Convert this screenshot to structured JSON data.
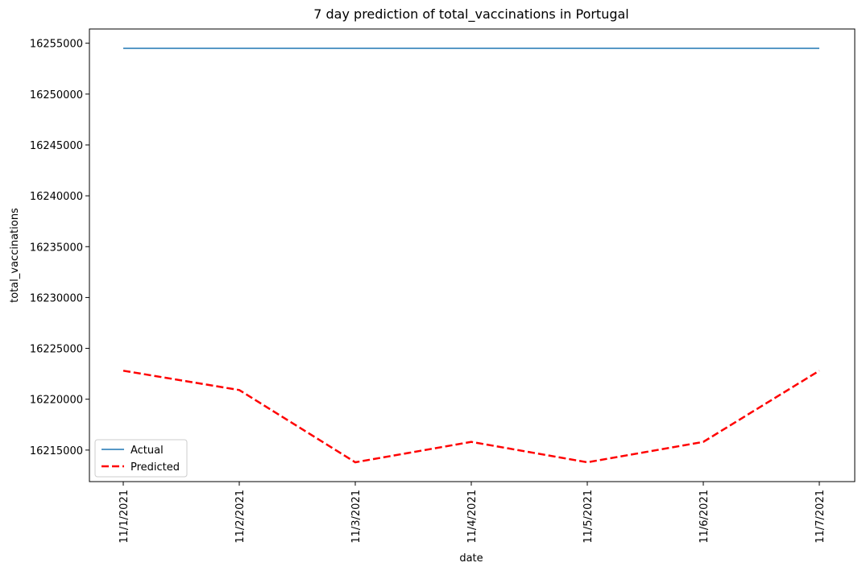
{
  "chart_data": {
    "type": "line",
    "title": "7 day prediction of total_vaccinations in Portugal",
    "xlabel": "date",
    "ylabel": "total_vaccinations",
    "categories": [
      "11/1/2021",
      "11/2/2021",
      "11/3/2021",
      "11/4/2021",
      "11/5/2021",
      "11/6/2021",
      "11/7/2021"
    ],
    "yticks": [
      16215000,
      16220000,
      16225000,
      16230000,
      16235000,
      16240000,
      16245000,
      16250000,
      16255000
    ],
    "ylim": [
      16211900,
      16256400
    ],
    "grid": false,
    "legend_position": "lower-left",
    "series": [
      {
        "name": "Actual",
        "color": "#1f77b4",
        "style": "solid",
        "values": [
          16254500,
          16254500,
          16254500,
          16254500,
          16254500,
          16254500,
          16254500
        ]
      },
      {
        "name": "Predicted",
        "color": "#ff0000",
        "style": "dashed",
        "values": [
          16222800,
          16220900,
          16213800,
          16215800,
          16213800,
          16215800,
          16222800
        ]
      }
    ]
  }
}
